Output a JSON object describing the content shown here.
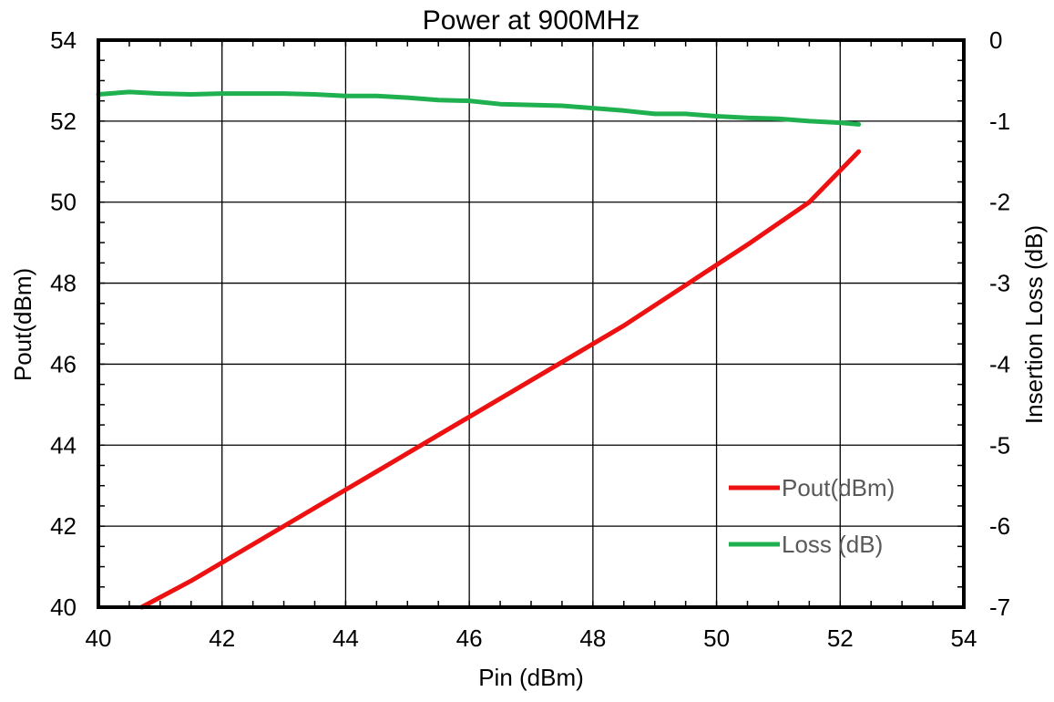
{
  "chart_data": {
    "type": "line",
    "title": "Power at 900MHz",
    "xlabel": "Pin (dBm)",
    "ylabel": "Pout(dBm)",
    "y2label": "Insertion Loss (dB)",
    "xlim": [
      40,
      54
    ],
    "ylim": [
      40,
      54
    ],
    "y2lim": [
      -7,
      0
    ],
    "xticks": [
      40,
      42,
      44,
      46,
      48,
      50,
      52,
      54
    ],
    "yticks": [
      40,
      42,
      44,
      46,
      48,
      50,
      52,
      54
    ],
    "y2ticks": [
      -7,
      -6,
      -5,
      -4,
      -3,
      -2,
      -1,
      0
    ],
    "grid": true,
    "legend_position": "bottom-right",
    "series": [
      {
        "name": "Pout(dBm)",
        "axis": "left",
        "color": "#ee1111",
        "x": [
          40.7,
          41.5,
          42.5,
          43.5,
          44.5,
          45.5,
          46.5,
          47.5,
          48.5,
          49.5,
          50.5,
          51.5,
          52.3
        ],
        "y": [
          40.0,
          40.65,
          41.55,
          42.45,
          43.35,
          44.25,
          45.15,
          46.05,
          46.95,
          47.95,
          48.95,
          50.0,
          51.25
        ]
      },
      {
        "name": "Loss (dB)",
        "axis": "right",
        "color": "#1fb050",
        "x": [
          40.0,
          40.5,
          41.0,
          41.5,
          42.0,
          42.5,
          43.0,
          43.5,
          44.0,
          44.5,
          45.0,
          45.5,
          46.0,
          46.5,
          47.0,
          47.5,
          48.0,
          48.5,
          49.0,
          49.5,
          50.0,
          50.5,
          51.0,
          51.5,
          52.0,
          52.3
        ],
        "y": [
          -0.67,
          -0.64,
          -0.66,
          -0.67,
          -0.66,
          -0.66,
          -0.66,
          -0.67,
          -0.69,
          -0.69,
          -0.71,
          -0.74,
          -0.75,
          -0.79,
          -0.8,
          -0.81,
          -0.84,
          -0.87,
          -0.91,
          -0.91,
          -0.94,
          -0.96,
          -0.97,
          -1.0,
          -1.02,
          -1.04
        ]
      }
    ]
  }
}
